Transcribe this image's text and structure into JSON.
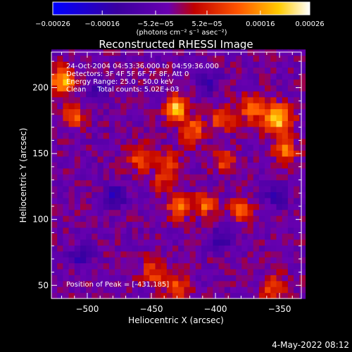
{
  "chart_data": {
    "type": "heatmap",
    "title": "Reconstructed RHESSI Image",
    "xlabel": "Heliocentric X (arcsec)",
    "ylabel": "Heliocentric Y (arcsec)",
    "xlim": [
      -528,
      -333
    ],
    "ylim": [
      40,
      227
    ],
    "x_ticks": [
      -500,
      -450,
      -400,
      -350
    ],
    "y_ticks": [
      50,
      100,
      150,
      200
    ],
    "colorbar": {
      "min": -0.00026,
      "max": 0.00026,
      "tick_values": [
        -0.00026,
        -0.00016,
        -5.2e-05,
        5.2e-05,
        0.00016,
        0.00026
      ],
      "tick_labels": [
        "-0.00026",
        "-0.00016",
        "-5.2e-05",
        "5.2e-05",
        "0.00016",
        "0.00026"
      ],
      "units_label": "(photons cm⁻² s⁻¹ asec⁻²)",
      "colors": [
        "#0000ff",
        "#3a00a0",
        "#6a00b0",
        "#c00000",
        "#ff5500",
        "#ffcc00",
        "#ffffff"
      ]
    },
    "annotations": {
      "time_range": "24-Oct-2004 04:53:36.000 to 04:59:36.000",
      "detectors": "Detectors: 3F 4F 5F 6F 7F 8F, Att 0",
      "energy_range": "Energy Range: 25.0 - 50.0 keV",
      "clean_counts": "Clean     Total counts: 5.02E+03",
      "peak": "Position of Peak = [-431,185]"
    },
    "peak_position": [
      -431,
      185
    ],
    "sources": [
      {
        "x": -431,
        "y": 185,
        "sigma": 6,
        "amplitude": 0.00026
      },
      {
        "x": -519,
        "y": 206,
        "sigma": 7,
        "amplitude": 0.00022
      },
      {
        "x": -510,
        "y": 178,
        "sigma": 6,
        "amplitude": 0.00015
      },
      {
        "x": -418,
        "y": 168,
        "sigma": 7,
        "amplitude": 0.00014
      },
      {
        "x": -395,
        "y": 176,
        "sigma": 6,
        "amplitude": 0.00013
      },
      {
        "x": -372,
        "y": 185,
        "sigma": 7,
        "amplitude": 0.00014
      },
      {
        "x": -352,
        "y": 176,
        "sigma": 8,
        "amplitude": 0.00023
      },
      {
        "x": -345,
        "y": 152,
        "sigma": 6,
        "amplitude": 0.00017
      },
      {
        "x": -458,
        "y": 147,
        "sigma": 7,
        "amplitude": 0.00013
      },
      {
        "x": -436,
        "y": 142,
        "sigma": 6,
        "amplitude": 0.00011
      },
      {
        "x": -393,
        "y": 145,
        "sigma": 6,
        "amplitude": 0.00012
      },
      {
        "x": -428,
        "y": 110,
        "sigma": 6,
        "amplitude": 0.00017
      },
      {
        "x": -408,
        "y": 112,
        "sigma": 6,
        "amplitude": 0.00015
      },
      {
        "x": -380,
        "y": 108,
        "sigma": 6,
        "amplitude": 0.00013
      },
      {
        "x": -442,
        "y": 128,
        "sigma": 5,
        "amplitude": 9e-05
      },
      {
        "x": -448,
        "y": 60,
        "sigma": 7,
        "amplitude": 0.00012
      },
      {
        "x": -430,
        "y": 48,
        "sigma": 7,
        "amplitude": 0.00013
      },
      {
        "x": -355,
        "y": 48,
        "sigma": 7,
        "amplitude": 0.00011
      },
      {
        "x": -492,
        "y": 198,
        "sigma": 6,
        "amplitude": -0.0001
      },
      {
        "x": -478,
        "y": 118,
        "sigma": 6,
        "amplitude": -0.00012
      },
      {
        "x": -505,
        "y": 72,
        "sigma": 6,
        "amplitude": -0.00011
      },
      {
        "x": -395,
        "y": 85,
        "sigma": 6,
        "amplitude": -0.00011
      },
      {
        "x": -405,
        "y": 205,
        "sigma": 6,
        "amplitude": -9e-05
      },
      {
        "x": -352,
        "y": 118,
        "sigma": 6,
        "amplitude": -0.0001
      }
    ]
  },
  "footer": {
    "timestamp": "4-May-2022 08:12"
  }
}
